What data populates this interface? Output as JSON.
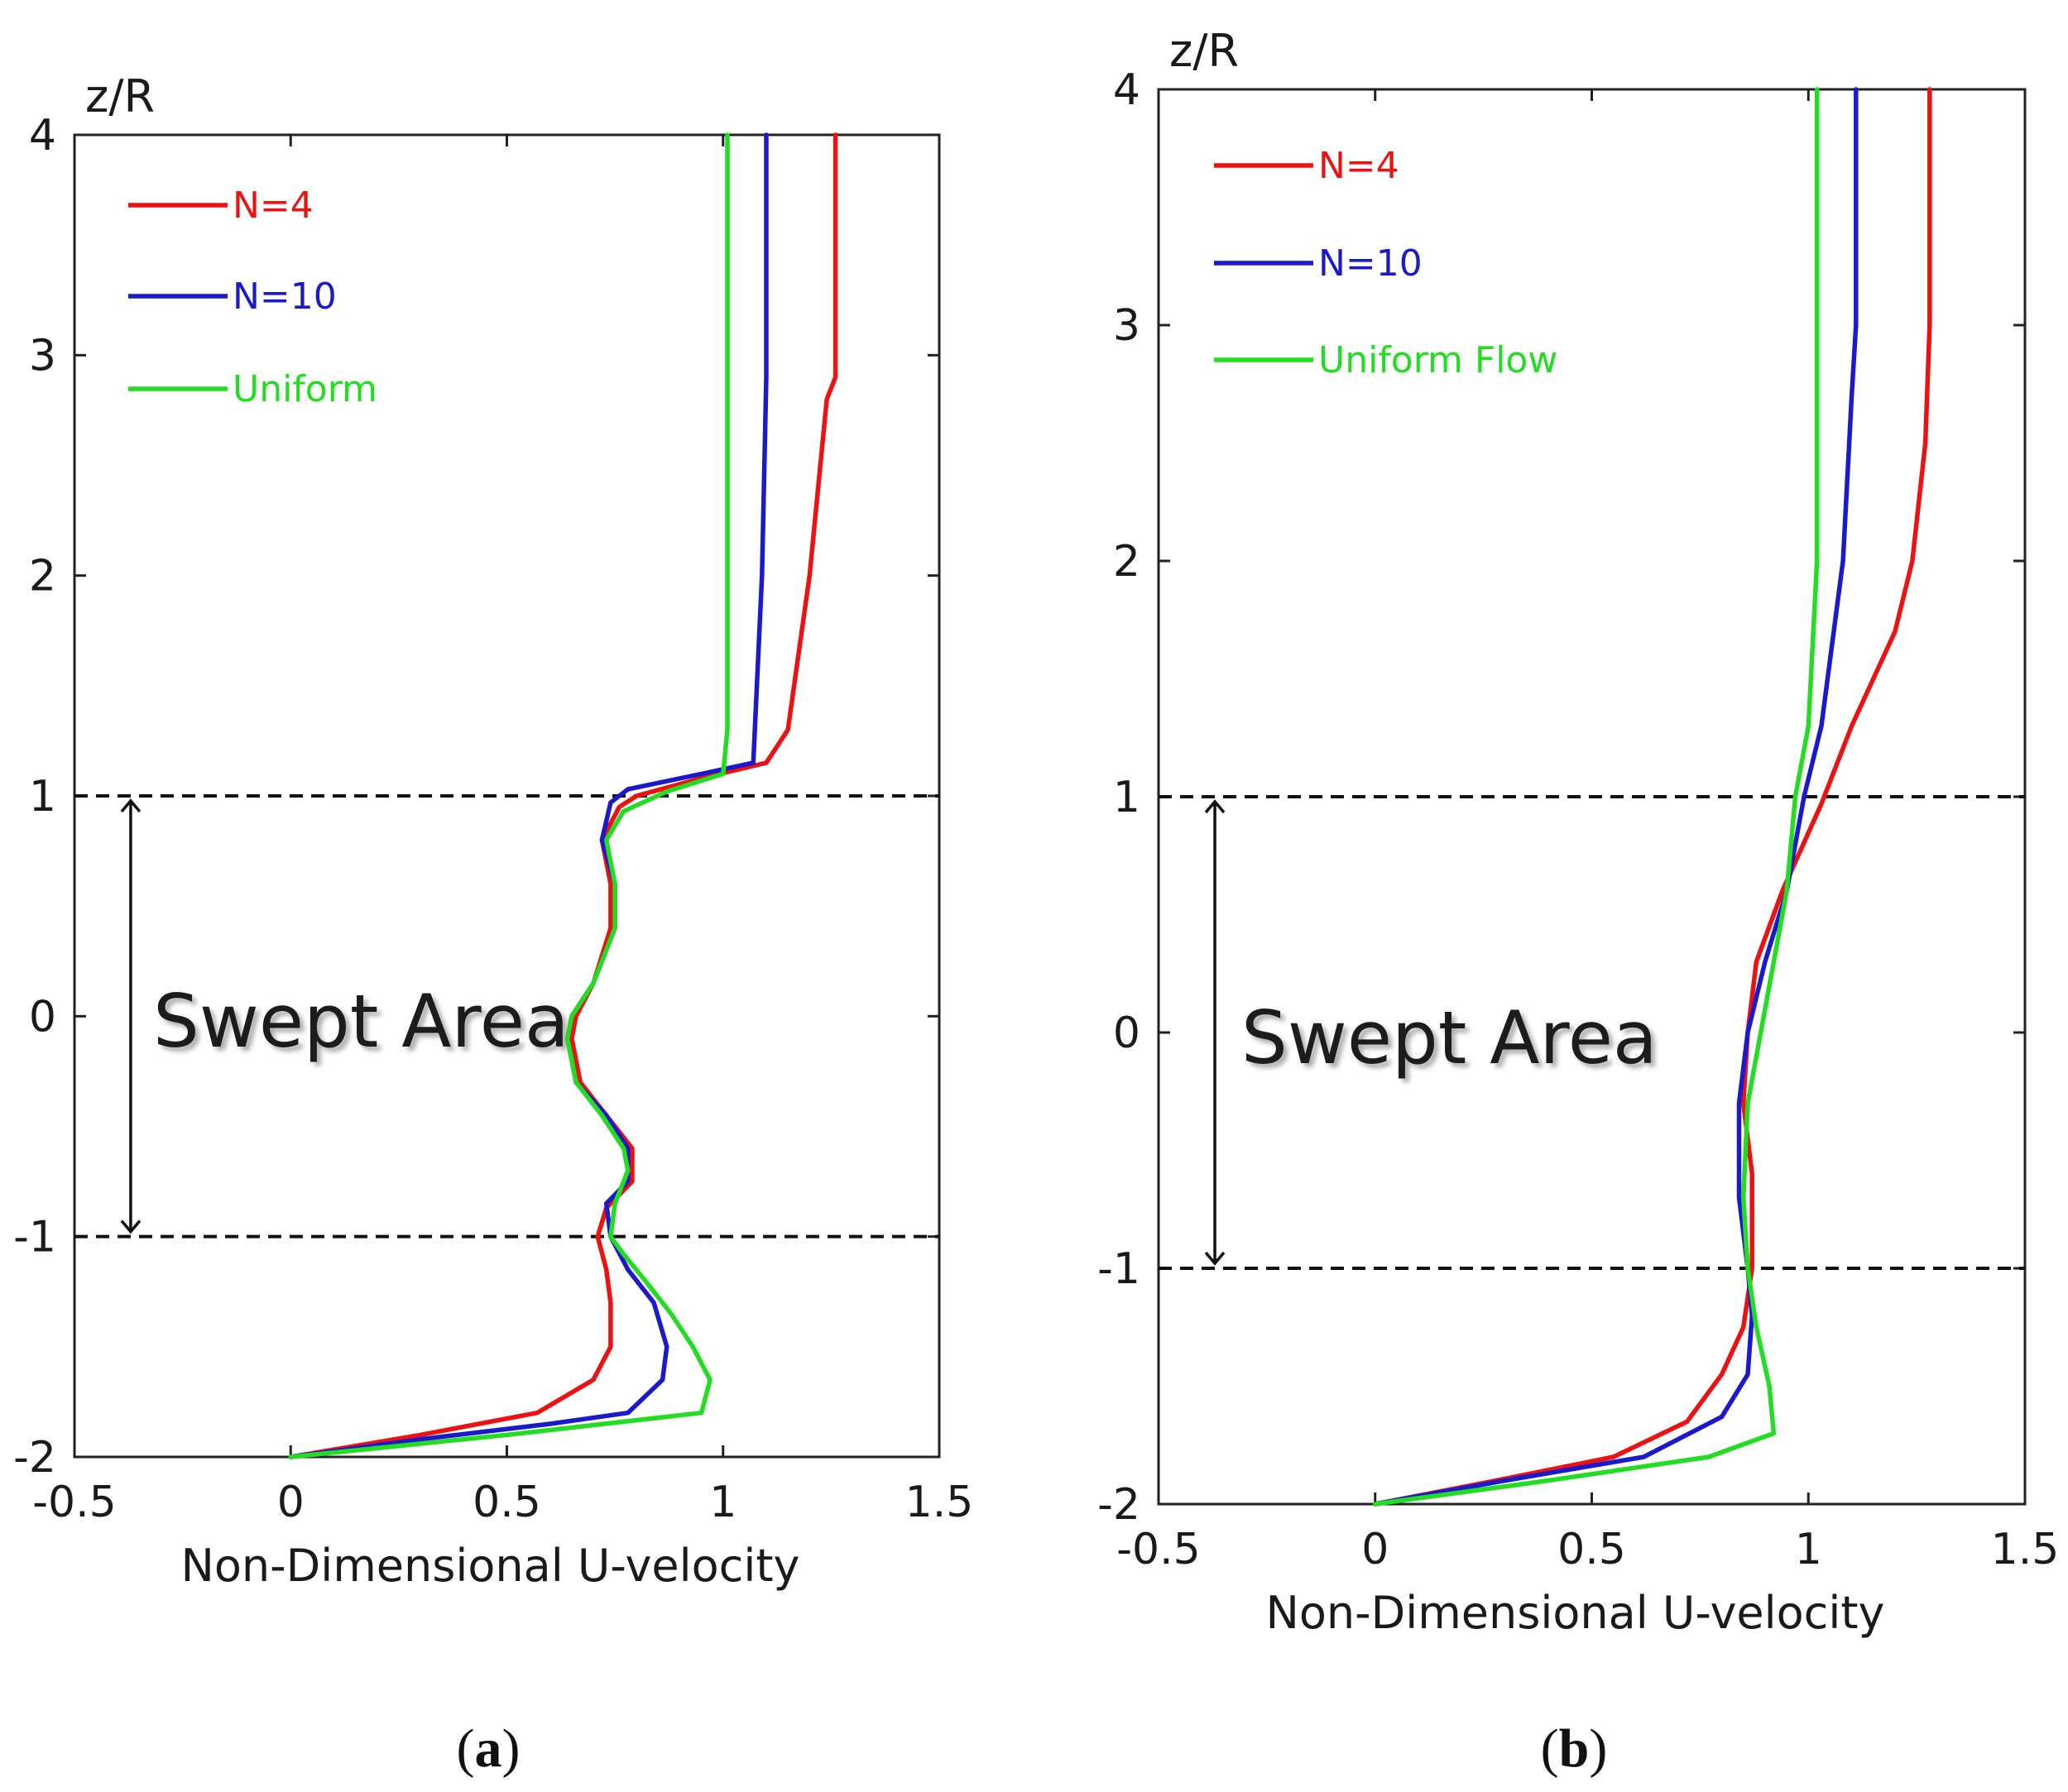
{
  "chart_data": [
    {
      "type": "line",
      "panel_label": "a",
      "xlabel": "Non-Dimensional U-velocity",
      "ylabel": "z/R",
      "xlim": [
        -0.5,
        1.5
      ],
      "ylim": [
        -2,
        4
      ],
      "xticks": [
        "-0.5",
        "0",
        "0.5",
        "1",
        "1.5"
      ],
      "yticks": [
        "-2",
        "-1",
        "0",
        "1",
        "2",
        "3",
        "4"
      ],
      "grid": false,
      "legend_position": "top-left",
      "annotation": {
        "text": "Swept Area",
        "arrow_from_z": 1,
        "arrow_to_z": -1,
        "arrow_u": -0.37
      },
      "reference_lines_z": [
        1,
        -1
      ],
      "series": [
        {
          "name": "N=4",
          "color": "#ee1111",
          "points": [
            [
              0.0,
              -2.0
            ],
            [
              0.3,
              -1.9
            ],
            [
              0.57,
              -1.8
            ],
            [
              0.7,
              -1.65
            ],
            [
              0.74,
              -1.5
            ],
            [
              0.74,
              -1.3
            ],
            [
              0.73,
              -1.15
            ],
            [
              0.71,
              -1.0
            ],
            [
              0.73,
              -0.87
            ],
            [
              0.79,
              -0.75
            ],
            [
              0.79,
              -0.6
            ],
            [
              0.73,
              -0.45
            ],
            [
              0.67,
              -0.3
            ],
            [
              0.65,
              -0.1
            ],
            [
              0.66,
              0.0
            ],
            [
              0.7,
              0.15
            ],
            [
              0.74,
              0.4
            ],
            [
              0.74,
              0.6
            ],
            [
              0.72,
              0.8
            ],
            [
              0.76,
              0.95
            ],
            [
              0.8,
              1.0
            ],
            [
              0.95,
              1.08
            ],
            [
              1.1,
              1.15
            ],
            [
              1.15,
              1.3
            ],
            [
              1.2,
              2.0
            ],
            [
              1.24,
              2.8
            ],
            [
              1.26,
              2.9
            ],
            [
              1.26,
              4.0
            ]
          ]
        },
        {
          "name": "N=10",
          "color": "#1a1acc",
          "points": [
            [
              0.0,
              -2.0
            ],
            [
              0.3,
              -1.92
            ],
            [
              0.6,
              -1.85
            ],
            [
              0.78,
              -1.8
            ],
            [
              0.86,
              -1.65
            ],
            [
              0.87,
              -1.5
            ],
            [
              0.84,
              -1.3
            ],
            [
              0.78,
              -1.15
            ],
            [
              0.74,
              -1.0
            ],
            [
              0.73,
              -0.85
            ],
            [
              0.78,
              -0.75
            ],
            [
              0.78,
              -0.6
            ],
            [
              0.73,
              -0.45
            ],
            [
              0.66,
              -0.3
            ],
            [
              0.64,
              -0.1
            ],
            [
              0.65,
              0.0
            ],
            [
              0.7,
              0.15
            ],
            [
              0.75,
              0.4
            ],
            [
              0.75,
              0.6
            ],
            [
              0.72,
              0.8
            ],
            [
              0.74,
              0.97
            ],
            [
              0.78,
              1.03
            ],
            [
              0.95,
              1.1
            ],
            [
              1.07,
              1.15
            ],
            [
              1.09,
              2.0
            ],
            [
              1.1,
              2.9
            ],
            [
              1.1,
              4.0
            ]
          ]
        },
        {
          "name": "Uniform",
          "color": "#22dd22",
          "points": [
            [
              0.0,
              -2.0
            ],
            [
              0.5,
              -1.9
            ],
            [
              0.95,
              -1.8
            ],
            [
              0.97,
              -1.65
            ],
            [
              0.93,
              -1.5
            ],
            [
              0.88,
              -1.35
            ],
            [
              0.82,
              -1.2
            ],
            [
              0.77,
              -1.08
            ],
            [
              0.74,
              -1.0
            ],
            [
              0.75,
              -0.85
            ],
            [
              0.78,
              -0.7
            ],
            [
              0.77,
              -0.6
            ],
            [
              0.72,
              -0.45
            ],
            [
              0.66,
              -0.3
            ],
            [
              0.64,
              -0.1
            ],
            [
              0.65,
              0.0
            ],
            [
              0.7,
              0.15
            ],
            [
              0.75,
              0.4
            ],
            [
              0.75,
              0.6
            ],
            [
              0.73,
              0.8
            ],
            [
              0.77,
              0.93
            ],
            [
              0.87,
              1.02
            ],
            [
              1.0,
              1.1
            ],
            [
              1.01,
              1.3
            ],
            [
              1.01,
              2.0
            ],
            [
              1.01,
              4.0
            ]
          ]
        }
      ]
    },
    {
      "type": "line",
      "panel_label": "b",
      "xlabel": "Non-Dimensional U-velocity",
      "ylabel": "z/R",
      "xlim": [
        -0.5,
        1.5
      ],
      "ylim": [
        -2,
        4
      ],
      "xticks": [
        "-0.5",
        "0",
        "0.5",
        "1",
        "1.5"
      ],
      "yticks": [
        "-2",
        "-1",
        "0",
        "1",
        "2",
        "3",
        "4"
      ],
      "grid": false,
      "legend_position": "top-left",
      "annotation": {
        "text": "Swept Area",
        "arrow_from_z": 1,
        "arrow_to_z": -1,
        "arrow_u": -0.37
      },
      "reference_lines_z": [
        1,
        -1
      ],
      "series": [
        {
          "name": "N=4",
          "color": "#ee1111",
          "points": [
            [
              0.0,
              -2.0
            ],
            [
              0.28,
              -1.9
            ],
            [
              0.55,
              -1.8
            ],
            [
              0.72,
              -1.65
            ],
            [
              0.8,
              -1.45
            ],
            [
              0.85,
              -1.25
            ],
            [
              0.87,
              -1.0
            ],
            [
              0.87,
              -0.6
            ],
            [
              0.85,
              -0.3
            ],
            [
              0.86,
              0.0
            ],
            [
              0.88,
              0.3
            ],
            [
              0.94,
              0.6
            ],
            [
              1.03,
              0.97
            ],
            [
              1.1,
              1.3
            ],
            [
              1.2,
              1.7
            ],
            [
              1.24,
              2.0
            ],
            [
              1.27,
              2.5
            ],
            [
              1.28,
              3.0
            ],
            [
              1.28,
              4.0
            ]
          ]
        },
        {
          "name": "N=10",
          "color": "#1a1acc",
          "points": [
            [
              0.0,
              -2.0
            ],
            [
              0.3,
              -1.9
            ],
            [
              0.62,
              -1.8
            ],
            [
              0.8,
              -1.63
            ],
            [
              0.86,
              -1.45
            ],
            [
              0.87,
              -1.2
            ],
            [
              0.86,
              -1.0
            ],
            [
              0.84,
              -0.7
            ],
            [
              0.84,
              -0.3
            ],
            [
              0.86,
              0.0
            ],
            [
              0.9,
              0.3
            ],
            [
              0.95,
              0.6
            ],
            [
              0.99,
              1.0
            ],
            [
              1.03,
              1.3
            ],
            [
              1.08,
              2.0
            ],
            [
              1.1,
              2.7
            ],
            [
              1.11,
              3.0
            ],
            [
              1.11,
              4.0
            ]
          ]
        },
        {
          "name": "Uniform Flow",
          "color": "#22dd22",
          "points": [
            [
              0.0,
              -2.0
            ],
            [
              0.4,
              -1.9
            ],
            [
              0.77,
              -1.8
            ],
            [
              0.92,
              -1.7
            ],
            [
              0.91,
              -1.5
            ],
            [
              0.88,
              -1.25
            ],
            [
              0.86,
              -1.0
            ],
            [
              0.85,
              -0.7
            ],
            [
              0.86,
              -0.3
            ],
            [
              0.89,
              0.0
            ],
            [
              0.92,
              0.3
            ],
            [
              0.95,
              0.6
            ],
            [
              0.97,
              1.0
            ],
            [
              1.0,
              1.3
            ],
            [
              1.02,
              2.0
            ],
            [
              1.02,
              4.0
            ]
          ]
        }
      ]
    }
  ]
}
